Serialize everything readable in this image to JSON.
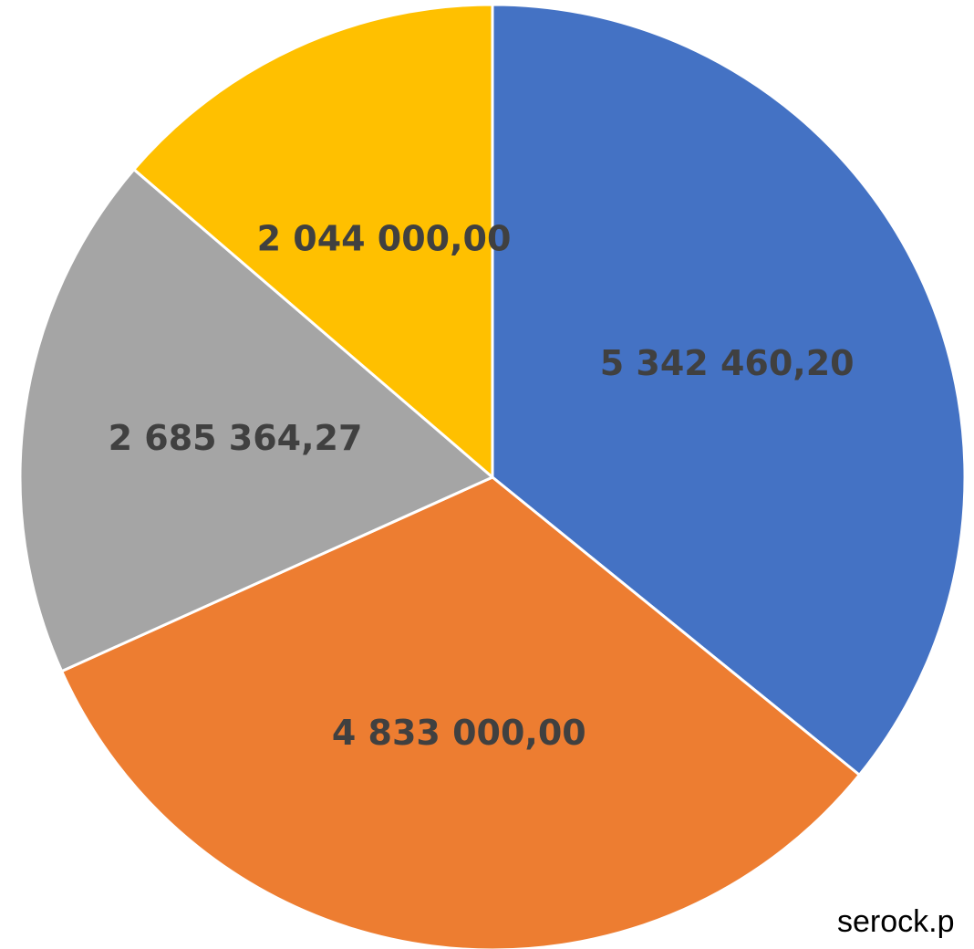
{
  "chart_data": {
    "type": "pie",
    "categories": [
      null,
      null,
      null,
      null
    ],
    "values": [
      5342460.2,
      4833000.0,
      2685364.27,
      2044000.0
    ],
    "value_labels": [
      "5 342 460,20",
      "4 833 000,00",
      "2 685 364,27",
      "2 044 000,00"
    ],
    "colors": [
      "#4472c4",
      "#ed7d31",
      "#a5a5a5",
      "#ffc000"
    ]
  },
  "watermark": "serock.p"
}
